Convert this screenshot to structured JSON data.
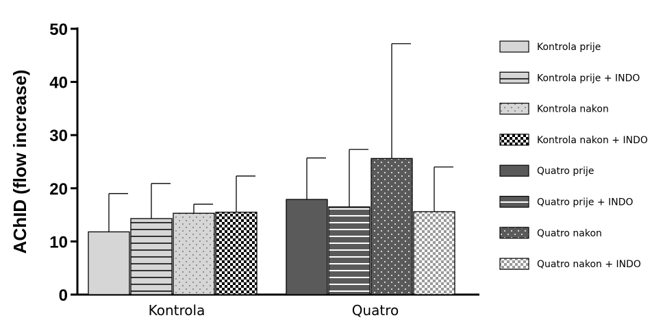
{
  "chart_data": {
    "type": "bar",
    "ylabel": "AChID (flow increase)",
    "ylim": [
      0,
      50
    ],
    "yticks": [
      0,
      10,
      20,
      30,
      40,
      50
    ],
    "categories": [
      "Kontrola",
      "Quatro"
    ],
    "series": [
      {
        "name": "Kontrola prije",
        "group": 0,
        "value": 11.8,
        "err": 7.2,
        "fill": "#d6d6d6",
        "pattern": "solid"
      },
      {
        "name": "Kontrola prije + INDO",
        "group": 0,
        "value": 14.3,
        "err": 6.6,
        "fill": "#d6d6d6",
        "pattern": "hlines"
      },
      {
        "name": "Kontrola nakon",
        "group": 0,
        "value": 15.3,
        "err": 1.7,
        "fill": "#d6d6d6",
        "pattern": "dots"
      },
      {
        "name": "Kontrola nakon + INDO",
        "group": 0,
        "value": 15.5,
        "err": 6.8,
        "fill": "#ffffff",
        "pattern": "checker"
      },
      {
        "name": "Quatro prije",
        "group": 1,
        "value": 17.9,
        "err": 7.8,
        "fill": "#5a5a5a",
        "pattern": "solid"
      },
      {
        "name": "Quatro prije + INDO",
        "group": 1,
        "value": 16.5,
        "err": 10.8,
        "fill": "#5a5a5a",
        "pattern": "hlines"
      },
      {
        "name": "Quatro nakon",
        "group": 1,
        "value": 25.6,
        "err": 21.6,
        "fill": "#5a5a5a",
        "pattern": "dots"
      },
      {
        "name": "Quatro nakon + INDO",
        "group": 1,
        "value": 15.6,
        "err": 8.4,
        "fill": "#ffffff",
        "pattern": "checker-light"
      }
    ],
    "grid": false,
    "legend_position": "right"
  }
}
